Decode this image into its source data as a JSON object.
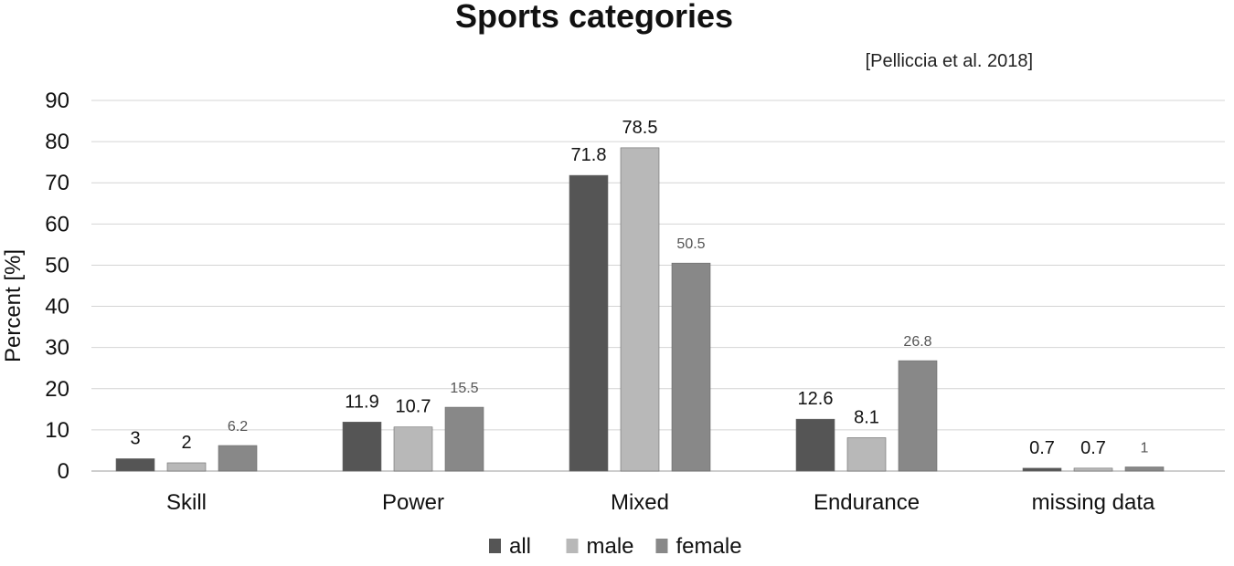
{
  "chart_data": {
    "type": "bar",
    "title": "Sports categories",
    "subtitle": "[Pelliccia et al. 2018]",
    "xlabel": "",
    "ylabel": "Percent [%]",
    "ylim": [
      0,
      90
    ],
    "yticks": [
      0,
      10,
      20,
      30,
      40,
      50,
      60,
      70,
      80,
      90
    ],
    "grid": true,
    "legend_position": "bottom",
    "categories": [
      "Skill",
      "Power",
      "Mixed",
      "Endurance",
      "missing data"
    ],
    "series": [
      {
        "name": "all",
        "color": "#555555",
        "values": [
          3,
          11.9,
          71.8,
          12.6,
          0.7
        ]
      },
      {
        "name": "male",
        "color": "#b8b8b8",
        "values": [
          2,
          10.7,
          78.5,
          8.1,
          0.7
        ]
      },
      {
        "name": "female",
        "color": "#888888",
        "values": [
          6.2,
          15.5,
          50.5,
          26.8,
          1
        ]
      }
    ]
  }
}
